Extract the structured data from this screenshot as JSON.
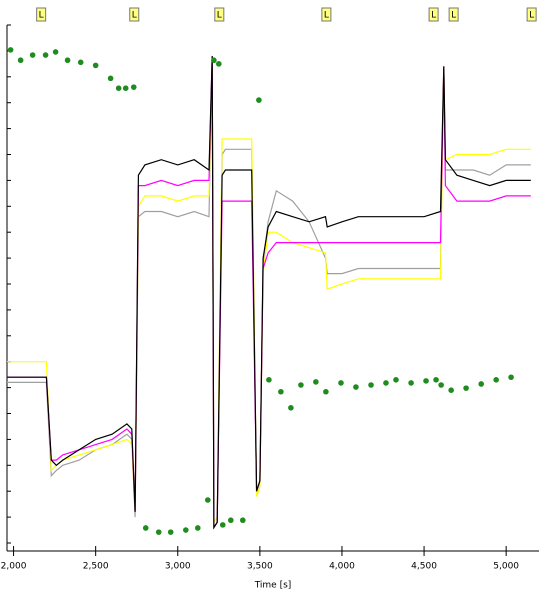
{
  "chart_data": {
    "type": "line",
    "xlabel": "Time [s]",
    "xlim": [
      1960,
      5200
    ],
    "ylim": [
      0,
      100
    ],
    "xticks": [
      {
        "value": 2000,
        "label": "2,000"
      },
      {
        "value": 2500,
        "label": "2,500"
      },
      {
        "value": 3000,
        "label": "3,000"
      },
      {
        "value": 3500,
        "label": "3,500"
      },
      {
        "value": 4000,
        "label": "4,000"
      },
      {
        "value": 4500,
        "label": "4,500"
      },
      {
        "value": 5000,
        "label": "5,000"
      }
    ],
    "yticks": [
      0,
      5,
      10,
      15,
      20,
      25,
      30,
      35,
      40,
      45,
      50,
      55,
      60,
      65,
      70,
      75,
      80,
      85,
      90,
      95,
      100
    ],
    "markers": {
      "x": [
        2165,
        2732,
        3250,
        3902,
        4555,
        4677,
        5152
      ],
      "labels": [
        "L",
        "L",
        "L",
        "L",
        "L",
        "L",
        "L"
      ],
      "color": "#ffff80"
    },
    "x": [
      1960,
      2200,
      2230,
      2260,
      2300,
      2400,
      2500,
      2600,
      2690,
      2720,
      2740,
      2760,
      2800,
      2900,
      3000,
      3100,
      3190,
      3210,
      3220,
      3240,
      3270,
      3290,
      3300,
      3400,
      3450,
      3480,
      3500,
      3520,
      3550,
      3600,
      3700,
      3800,
      3900,
      3910,
      4000,
      4100,
      4200,
      4300,
      4400,
      4500,
      4600,
      4620,
      4630,
      4700,
      4800,
      4900,
      5000,
      5100,
      5150
    ],
    "series": [
      {
        "color": "#a0a0a0",
        "values": [
          31,
          31,
          13,
          14,
          15,
          16,
          18,
          19,
          21,
          20,
          5,
          63,
          64,
          64,
          63,
          64,
          63,
          94,
          3,
          4,
          75,
          76,
          76,
          76,
          76,
          9,
          11,
          54,
          62,
          68,
          66,
          62,
          55,
          52,
          52,
          53,
          53,
          53,
          53,
          53,
          53,
          92,
          72,
          72,
          72,
          71,
          73,
          73,
          73
        ]
      },
      {
        "color": "#ffff00",
        "values": [
          35,
          35,
          14,
          15,
          16,
          17,
          18,
          19,
          20,
          19,
          6,
          65,
          67,
          67,
          66,
          67,
          67,
          93,
          4,
          5,
          78,
          78,
          78,
          78,
          78,
          9,
          11,
          52,
          60,
          60,
          58,
          57,
          56,
          49,
          50,
          51,
          51,
          51,
          51,
          51,
          51,
          92,
          74,
          75,
          75,
          75,
          76,
          76,
          76
        ]
      },
      {
        "color": "#ff00ff",
        "values": [
          32,
          32,
          16,
          16,
          17,
          18,
          19,
          20,
          22,
          21,
          6,
          69,
          69,
          70,
          69,
          70,
          70,
          94,
          3,
          4,
          66,
          66,
          66,
          66,
          66,
          10,
          12,
          53,
          56,
          58,
          58,
          58,
          58,
          58,
          58,
          58,
          58,
          58,
          58,
          58,
          58,
          92,
          69,
          66,
          66,
          66,
          67,
          67,
          67
        ]
      },
      {
        "color": "#000000",
        "values": [
          32,
          32,
          16,
          15,
          16,
          18,
          20,
          21,
          23,
          22,
          6,
          71,
          73,
          74,
          73,
          74,
          72,
          94,
          3,
          4,
          71,
          72,
          72,
          72,
          72,
          10,
          12,
          55,
          61,
          64,
          63,
          62,
          63,
          61,
          62,
          63,
          63,
          63,
          63,
          63,
          64,
          92,
          74,
          71,
          70,
          69,
          70,
          70,
          70
        ]
      }
    ],
    "points": {
      "color": "#1e8c1e",
      "x": [
        1982,
        2043,
        2116,
        2195,
        2256,
        2329,
        2409,
        2500,
        2591,
        2640,
        2683,
        2732,
        2805,
        2884,
        2957,
        3049,
        3122,
        3183,
        3220,
        3250,
        3274,
        3323,
        3396,
        3494,
        3555,
        3628,
        3689,
        3750,
        3841,
        3902,
        3994,
        4085,
        4177,
        4268,
        4329,
        4421,
        4512,
        4573,
        4604,
        4665,
        4756,
        4848,
        4939,
        5030
      ],
      "values": [
        95.2,
        93.2,
        94.2,
        94.2,
        94.8,
        93.2,
        92.8,
        92.2,
        89.7,
        87.8,
        87.8,
        88.0,
        2.9,
        2.1,
        2.1,
        2.5,
        2.9,
        8.3,
        93.2,
        92.5,
        3.5,
        4.4,
        4.4,
        85.5,
        31.5,
        29.2,
        26.1,
        30.5,
        31.1,
        29.2,
        30.9,
        30.1,
        30.5,
        30.9,
        31.5,
        30.9,
        31.3,
        31.5,
        30.5,
        29.5,
        29.9,
        30.7,
        31.5,
        32.0
      ]
    }
  }
}
